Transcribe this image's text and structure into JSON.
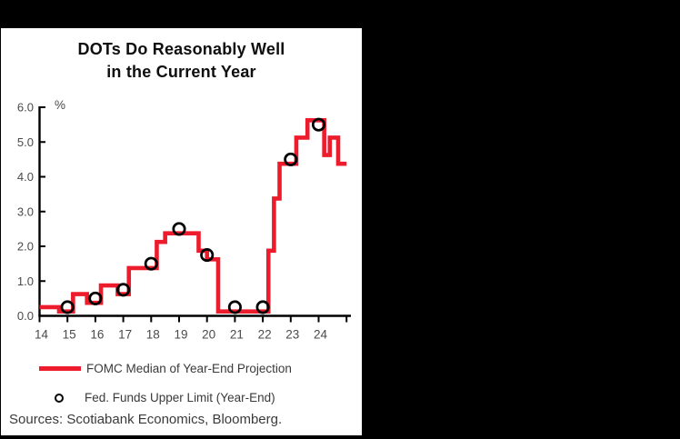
{
  "colors": {
    "line_red": "#ed1c2d",
    "axis_black": "#000000",
    "tick_label_gray": "#4a4a4a",
    "text_gray": "#3a3a3a",
    "panel_bg": "#ffffff",
    "outer_bg": "#000000"
  },
  "chart_data": {
    "type": "line",
    "subtype": "step-line-with-scatter-markers",
    "title_line1": "DOTs Do Reasonably Well",
    "title_line2": "in the Current Year",
    "ylabel": "%",
    "xlabel": "",
    "grid": false,
    "legend_position": "below",
    "xlim": [
      14,
      25.2
    ],
    "ylim": [
      0,
      6
    ],
    "x_tick_labels": [
      "14",
      "15",
      "16",
      "17",
      "18",
      "19",
      "20",
      "21",
      "22",
      "23",
      "24"
    ],
    "y_tick_labels": [
      "0.0",
      "1.0",
      "2.0",
      "3.0",
      "4.0",
      "5.0",
      "6.0"
    ],
    "series": [
      {
        "name": "FOMC Median of Year-End Projection",
        "style": "step",
        "color": "#ed1c2d",
        "points": [
          [
            14.0,
            0.25
          ],
          [
            14.7,
            0.125
          ],
          [
            15.2,
            0.625
          ],
          [
            15.7,
            0.375
          ],
          [
            16.2,
            0.875
          ],
          [
            16.8,
            0.625
          ],
          [
            17.2,
            1.375
          ],
          [
            18.2,
            2.125
          ],
          [
            18.5,
            2.375
          ],
          [
            19.7,
            1.875
          ],
          [
            20.0,
            1.625
          ],
          [
            20.4,
            0.125
          ],
          [
            22.2,
            1.875
          ],
          [
            22.4,
            3.375
          ],
          [
            22.6,
            4.375
          ],
          [
            23.2,
            5.125
          ],
          [
            23.6,
            5.625
          ],
          [
            24.2,
            4.625
          ],
          [
            24.4,
            5.125
          ],
          [
            24.7,
            4.375
          ],
          [
            25.0,
            4.375
          ]
        ]
      },
      {
        "name": "Fed. Funds Upper Limit (Year-End)",
        "style": "scatter-open-circle",
        "color": "#000000",
        "points": [
          [
            15,
            0.25
          ],
          [
            16,
            0.5
          ],
          [
            17,
            0.75
          ],
          [
            18,
            1.5
          ],
          [
            19,
            2.5
          ],
          [
            20,
            1.75
          ],
          [
            21,
            0.25
          ],
          [
            22,
            0.25
          ],
          [
            23,
            4.5
          ],
          [
            24,
            5.5
          ]
        ]
      }
    ]
  },
  "footer": {
    "sources": "Sources: Scotiabank Economics, Bloomberg."
  }
}
